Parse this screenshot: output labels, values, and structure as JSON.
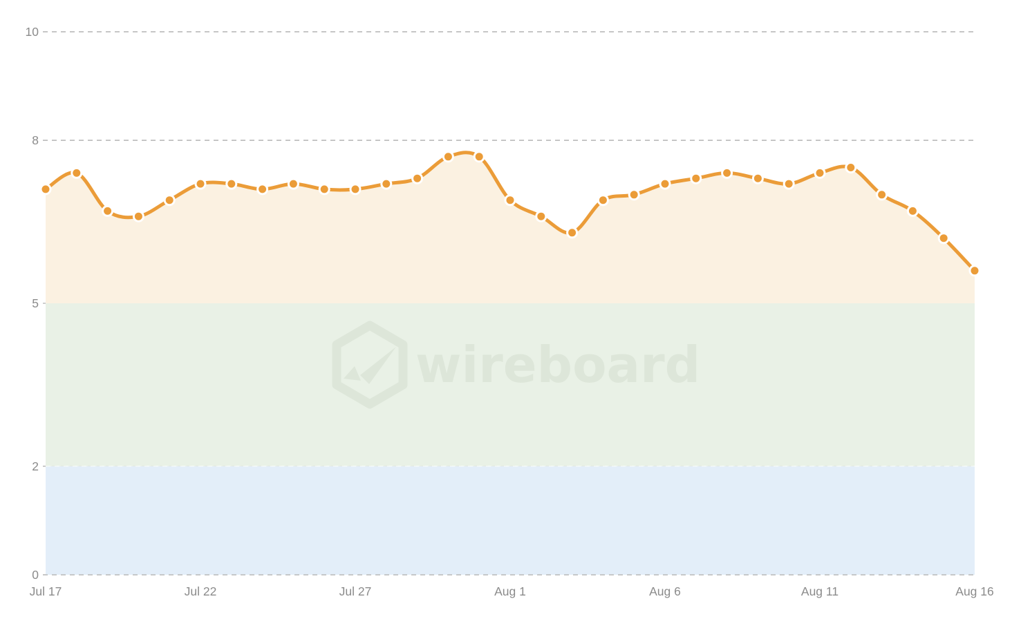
{
  "chart_data": {
    "type": "line",
    "title": "",
    "x": [
      "Jul 17",
      "Jul 18",
      "Jul 19",
      "Jul 20",
      "Jul 21",
      "Jul 22",
      "Jul 23",
      "Jul 24",
      "Jul 25",
      "Jul 26",
      "Jul 27",
      "Jul 28",
      "Jul 29",
      "Jul 30",
      "Jul 31",
      "Aug 1",
      "Aug 2",
      "Aug 3",
      "Aug 4",
      "Aug 5",
      "Aug 6",
      "Aug 7",
      "Aug 8",
      "Aug 9",
      "Aug 10",
      "Aug 11",
      "Aug 12",
      "Aug 13",
      "Aug 14",
      "Aug 15",
      "Aug 16"
    ],
    "values": [
      7.1,
      7.4,
      6.7,
      6.6,
      6.9,
      7.2,
      7.2,
      7.1,
      7.2,
      7.1,
      7.1,
      7.2,
      7.3,
      7.7,
      7.7,
      6.9,
      6.6,
      6.3,
      6.9,
      7.0,
      7.2,
      7.3,
      7.4,
      7.3,
      7.2,
      7.4,
      7.5,
      7.0,
      6.7,
      6.2,
      5.6
    ],
    "xlabel": "",
    "ylabel": "",
    "ylim": [
      0,
      10
    ],
    "y_ticks": [
      0,
      2,
      5,
      8,
      10
    ],
    "x_tick_labels": [
      "Jul 17",
      "Jul 22",
      "Jul 27",
      "Aug 1",
      "Aug 6",
      "Aug 11",
      "Aug 16"
    ],
    "x_tick_indices": [
      0,
      5,
      10,
      15,
      20,
      25,
      30
    ],
    "grid": "horizontal-dashed",
    "legend": "none",
    "smoothing": "catmull-rom",
    "area_fill_baseline": 5,
    "bands": [
      {
        "from": 0,
        "to": 2,
        "color": "#e3eef9"
      },
      {
        "from": 2,
        "to": 5,
        "color": "#e9f1e6"
      }
    ],
    "colors": {
      "line": "#eb9c38",
      "marker": "#eb9c38",
      "marker_border": "#ffffff",
      "area_fill": "#fbf1e1",
      "grid": "#bdbdbd",
      "tick_label": "#8b8b8b",
      "background": "#ffffff",
      "band_divider": "#ffffff"
    }
  },
  "watermark": {
    "text": "wireboard",
    "color": "#dde6d9"
  }
}
